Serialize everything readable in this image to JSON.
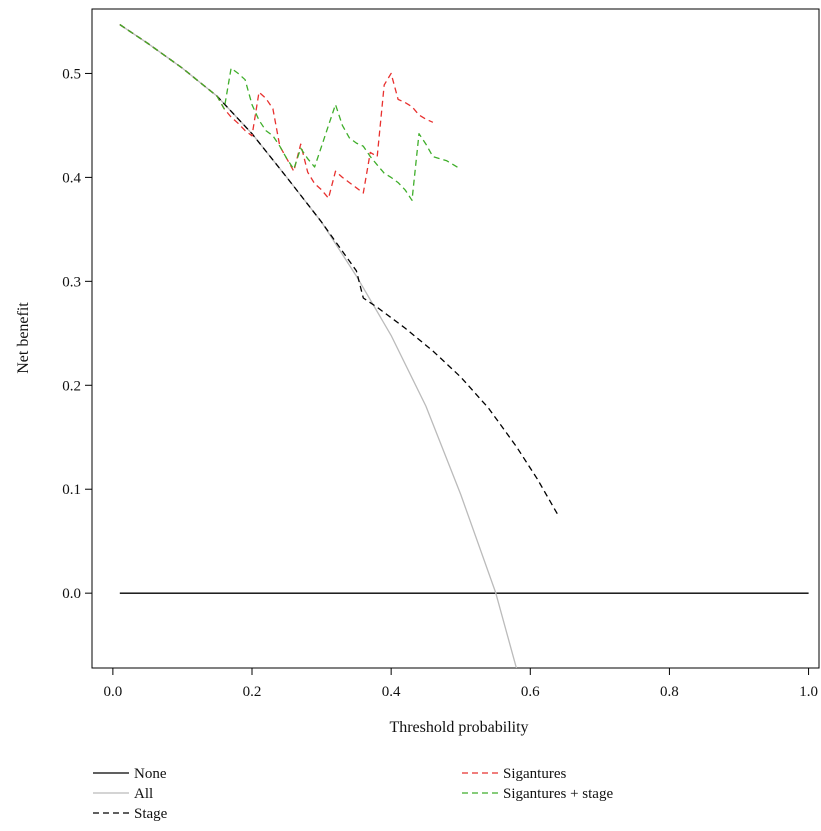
{
  "chart_data": {
    "type": "line",
    "title": "",
    "xlabel": "Threshold probability",
    "ylabel": "Net benefit",
    "xlim": [
      -0.03,
      1.015
    ],
    "ylim": [
      -0.072,
      0.562
    ],
    "grid": false,
    "legend_position": "bottom",
    "x_ticks": [
      {
        "value": 0.0,
        "label": "0.0"
      },
      {
        "value": 0.2,
        "label": "0.2"
      },
      {
        "value": 0.4,
        "label": "0.4"
      },
      {
        "value": 0.6,
        "label": "0.6"
      },
      {
        "value": 0.8,
        "label": "0.8"
      },
      {
        "value": 1.0,
        "label": "1.0"
      }
    ],
    "y_ticks": [
      {
        "value": 0.0,
        "label": "0.0"
      },
      {
        "value": 0.1,
        "label": "0.1"
      },
      {
        "value": 0.2,
        "label": "0.2"
      },
      {
        "value": 0.3,
        "label": "0.3"
      },
      {
        "value": 0.4,
        "label": "0.4"
      },
      {
        "value": 0.5,
        "label": "0.5"
      }
    ],
    "series": [
      {
        "name": "None",
        "color": "#000000",
        "dash": "solid",
        "x": [
          0.01,
          1.0
        ],
        "y": [
          0.0,
          0.0
        ]
      },
      {
        "name": "All",
        "color": "#bbbbbb",
        "dash": "solid",
        "x": [
          0.01,
          0.05,
          0.1,
          0.15,
          0.2,
          0.25,
          0.3,
          0.35,
          0.4,
          0.45,
          0.5,
          0.55,
          0.58
        ],
        "y": [
          0.547,
          0.529,
          0.505,
          0.478,
          0.442,
          0.4,
          0.357,
          0.305,
          0.248,
          0.18,
          0.095,
          0.001,
          -0.072
        ]
      },
      {
        "name": "Stage",
        "color": "#000000",
        "dash": "dashed",
        "x": [
          0.01,
          0.05,
          0.1,
          0.15,
          0.2,
          0.25,
          0.3,
          0.35,
          0.36,
          0.38,
          0.42,
          0.46,
          0.5,
          0.54,
          0.58,
          0.61,
          0.64
        ],
        "y": [
          0.547,
          0.529,
          0.505,
          0.478,
          0.442,
          0.4,
          0.357,
          0.31,
          0.284,
          0.275,
          0.255,
          0.233,
          0.208,
          0.178,
          0.141,
          0.11,
          0.075
        ]
      },
      {
        "name": "Sigantures",
        "color": "#e8312f",
        "dash": "dashed",
        "x": [
          0.01,
          0.05,
          0.1,
          0.15,
          0.16,
          0.17,
          0.18,
          0.19,
          0.2,
          0.21,
          0.22,
          0.23,
          0.24,
          0.25,
          0.26,
          0.27,
          0.28,
          0.29,
          0.3,
          0.31,
          0.32,
          0.33,
          0.34,
          0.35,
          0.36,
          0.37,
          0.38,
          0.39,
          0.4,
          0.41,
          0.42,
          0.43,
          0.44,
          0.45,
          0.46
        ],
        "y": [
          0.547,
          0.529,
          0.505,
          0.478,
          0.466,
          0.458,
          0.452,
          0.445,
          0.44,
          0.482,
          0.476,
          0.466,
          0.43,
          0.418,
          0.406,
          0.432,
          0.405,
          0.394,
          0.388,
          0.38,
          0.406,
          0.4,
          0.395,
          0.39,
          0.385,
          0.424,
          0.42,
          0.489,
          0.5,
          0.475,
          0.472,
          0.468,
          0.46,
          0.456,
          0.453
        ]
      },
      {
        "name": "Sigantures + stage",
        "color": "#3fae2a",
        "dash": "dashed",
        "x": [
          0.01,
          0.05,
          0.1,
          0.15,
          0.16,
          0.17,
          0.18,
          0.19,
          0.2,
          0.21,
          0.22,
          0.23,
          0.24,
          0.25,
          0.26,
          0.27,
          0.28,
          0.29,
          0.3,
          0.31,
          0.32,
          0.33,
          0.34,
          0.35,
          0.36,
          0.37,
          0.38,
          0.39,
          0.4,
          0.41,
          0.42,
          0.43,
          0.44,
          0.45,
          0.46,
          0.48,
          0.5
        ],
        "y": [
          0.547,
          0.529,
          0.505,
          0.478,
          0.466,
          0.505,
          0.5,
          0.494,
          0.47,
          0.455,
          0.445,
          0.44,
          0.43,
          0.418,
          0.408,
          0.428,
          0.418,
          0.41,
          0.43,
          0.45,
          0.47,
          0.45,
          0.438,
          0.433,
          0.43,
          0.42,
          0.412,
          0.404,
          0.4,
          0.395,
          0.388,
          0.378,
          0.442,
          0.432,
          0.42,
          0.416,
          0.408
        ]
      }
    ]
  },
  "legend": {
    "left": [
      {
        "label": "None",
        "color": "#000000",
        "dash": "solid"
      },
      {
        "label": "All",
        "color": "#bbbbbb",
        "dash": "solid"
      },
      {
        "label": "Stage",
        "color": "#000000",
        "dash": "dashed"
      }
    ],
    "right": [
      {
        "label": "Sigantures",
        "color": "#e8312f",
        "dash": "dashed"
      },
      {
        "label": "Sigantures + stage",
        "color": "#3fae2a",
        "dash": "dashed"
      }
    ]
  }
}
